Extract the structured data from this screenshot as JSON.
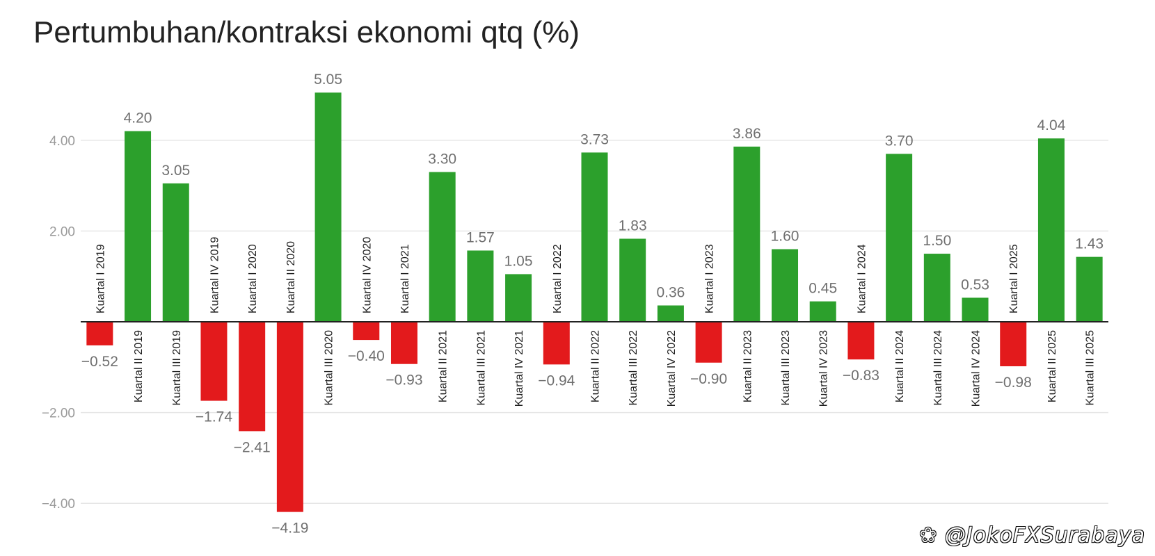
{
  "chart_data": {
    "type": "bar",
    "title": "Pertumbuhan/kontraksi ekonomi qtq (%)",
    "xlabel": "",
    "ylabel": "",
    "ylim": [
      -4.5,
      5.3
    ],
    "yticks": [
      -4,
      -2,
      2,
      4
    ],
    "ytick_labels": [
      "−4.00",
      "−2.00",
      "2.00",
      "4.00"
    ],
    "grid": true,
    "colors": {
      "positive": "#2ca02c",
      "negative": "#e31a1c",
      "zero_line": "#222222",
      "grid": "#e6e6e6"
    },
    "categories": [
      "Kuartal I 2019",
      "Kuartal II 2019",
      "Kuartal III 2019",
      "Kuartal IV 2019",
      "Kuartal I 2020",
      "Kuartal II 2020",
      "Kuartal III 2020",
      "Kuartal IV 2020",
      "Kuartal I 2021",
      "Kuartal II 2021",
      "Kuartal III 2021",
      "Kuartal IV 2021",
      "Kuartal I 2022",
      "Kuartal II 2022",
      "Kuartal III 2022",
      "Kuartal IV 2022",
      "Kuartal I 2023",
      "Kuartal II 2023",
      "Kuartal III 2023",
      "Kuartal IV 2023",
      "Kuartal I 2024",
      "Kuartal II 2024",
      "Kuartal III 2024",
      "Kuartal IV 2024",
      "Kuartal I 2025",
      "Kuartal II 2025",
      "Kuartal III 2025"
    ],
    "values": [
      -0.52,
      4.2,
      3.05,
      -1.74,
      -2.41,
      -4.19,
      5.05,
      -0.4,
      -0.93,
      3.3,
      1.57,
      1.05,
      -0.94,
      3.73,
      1.83,
      0.36,
      -0.9,
      3.86,
      1.6,
      0.45,
      -0.83,
      3.7,
      1.5,
      0.53,
      -0.98,
      4.04,
      1.43
    ],
    "value_labels": [
      "−0.52",
      "4.20",
      "3.05",
      "−1.74",
      "−2.41",
      "−4.19",
      "5.05",
      "−0.40",
      "−0.93",
      "3.30",
      "1.57",
      "1.05",
      "−0.94",
      "3.73",
      "1.83",
      "0.36",
      "−0.90",
      "3.86",
      "1.60",
      "0.45",
      "−0.83",
      "3.70",
      "1.50",
      "0.53",
      "−0.98",
      "4.04",
      "1.43"
    ]
  },
  "watermark": "❀ @JokoFXSurabaya"
}
